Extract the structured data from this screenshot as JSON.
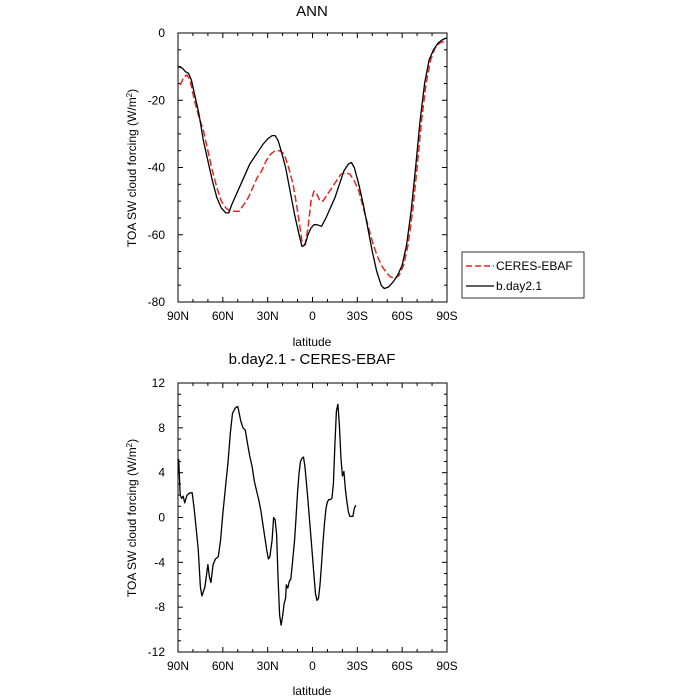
{
  "chart_data": [
    {
      "type": "line",
      "title": "ANN",
      "xlabel": "latitude",
      "ylabel": "TOA SW cloud forcing (W/m",
      "ylabel_sup": "2",
      "ylabel_end": ")",
      "xlim": [
        90,
        -90
      ],
      "ylim": [
        -80,
        0
      ],
      "xticks": [
        90,
        60,
        30,
        0,
        -30,
        -60,
        -90
      ],
      "xtick_labels": [
        "90N",
        "60N",
        "30N",
        "0",
        "30S",
        "60S",
        "90S"
      ],
      "yticks": [
        -80,
        -60,
        -40,
        -20,
        0
      ],
      "ytick_labels": [
        "-80",
        "-60",
        "-40",
        "-20",
        "0"
      ],
      "legend_position": "right",
      "series": [
        {
          "name": "CERES-EBAF",
          "color": "#e8251f",
          "dash": true,
          "points": [
            [
              88.5,
              -15.5
            ],
            [
              86,
              -13
            ],
            [
              84,
              -12.5
            ],
            [
              82,
              -14
            ],
            [
              79,
              -20
            ],
            [
              76,
              -25
            ],
            [
              73,
              -29
            ],
            [
              70,
              -35
            ],
            [
              67,
              -41
            ],
            [
              64,
              -46
            ],
            [
              61,
              -50
            ],
            [
              58,
              -52
            ],
            [
              55,
              -53
            ],
            [
              52,
              -53
            ],
            [
              49,
              -53
            ],
            [
              46,
              -51
            ],
            [
              43,
              -49
            ],
            [
              40,
              -46
            ],
            [
              37,
              -43
            ],
            [
              34,
              -41
            ],
            [
              31,
              -38
            ],
            [
              28,
              -36
            ],
            [
              25,
              -35
            ],
            [
              22,
              -35
            ],
            [
              19,
              -36
            ],
            [
              16,
              -40
            ],
            [
              13,
              -45
            ],
            [
              10,
              -53
            ],
            [
              7,
              -62
            ],
            [
              5,
              -63
            ],
            [
              3,
              -58
            ],
            [
              1,
              -50
            ],
            [
              -1,
              -47
            ],
            [
              -3,
              -48
            ],
            [
              -5,
              -50
            ],
            [
              -7,
              -50
            ],
            [
              -10,
              -48
            ],
            [
              -13,
              -46
            ],
            [
              -16,
              -44
            ],
            [
              -19,
              -42
            ],
            [
              -22,
              -41.5
            ],
            [
              -25,
              -42
            ],
            [
              -28,
              -44
            ],
            [
              -31,
              -47
            ],
            [
              -34,
              -52
            ],
            [
              -37,
              -57
            ],
            [
              -40,
              -62
            ],
            [
              -43,
              -66
            ],
            [
              -46,
              -69
            ],
            [
              -49,
              -71
            ],
            [
              -52,
              -72.5
            ],
            [
              -55,
              -73
            ],
            [
              -58,
              -72
            ],
            [
              -61,
              -69
            ],
            [
              -64,
              -63
            ],
            [
              -67,
              -53
            ],
            [
              -70,
              -40
            ],
            [
              -73,
              -26
            ],
            [
              -76,
              -15
            ],
            [
              -79,
              -8
            ],
            [
              -82,
              -4.5
            ],
            [
              -85,
              -3
            ],
            [
              -88,
              -2.5
            ]
          ]
        },
        {
          "name": "b.day2.1",
          "color": "#000000",
          "dash": false,
          "points": [
            [
              89.5,
              -10
            ],
            [
              87,
              -10.5
            ],
            [
              85,
              -11.5
            ],
            [
              83,
              -12
            ],
            [
              81,
              -14
            ],
            [
              79,
              -18
            ],
            [
              76,
              -24
            ],
            [
              73,
              -32
            ],
            [
              70,
              -38
            ],
            [
              67,
              -44
            ],
            [
              64,
              -49
            ],
            [
              61,
              -52
            ],
            [
              58,
              -53.5
            ],
            [
              56,
              -53.5
            ],
            [
              54,
              -51
            ],
            [
              51,
              -48
            ],
            [
              48,
              -45
            ],
            [
              45,
              -42
            ],
            [
              42,
              -39
            ],
            [
              39,
              -37
            ],
            [
              36,
              -35
            ],
            [
              33,
              -33
            ],
            [
              30,
              -31.5
            ],
            [
              27,
              -30.5
            ],
            [
              25,
              -30.5
            ],
            [
              23,
              -32
            ],
            [
              21,
              -35
            ],
            [
              18,
              -40
            ],
            [
              15,
              -47
            ],
            [
              12,
              -54
            ],
            [
              9,
              -60
            ],
            [
              7,
              -63.5
            ],
            [
              5,
              -63
            ],
            [
              3,
              -60
            ],
            [
              1,
              -58
            ],
            [
              -1,
              -57
            ],
            [
              -3,
              -57
            ],
            [
              -6,
              -57.5
            ],
            [
              -9,
              -55
            ],
            [
              -12,
              -52
            ],
            [
              -15,
              -49
            ],
            [
              -18,
              -45
            ],
            [
              -21,
              -41
            ],
            [
              -24,
              -39
            ],
            [
              -26,
              -38.5
            ],
            [
              -28,
              -40
            ],
            [
              -31,
              -45
            ],
            [
              -34,
              -51
            ],
            [
              -37,
              -58
            ],
            [
              -40,
              -65
            ],
            [
              -43,
              -71
            ],
            [
              -46,
              -75
            ],
            [
              -48,
              -76
            ],
            [
              -51,
              -75.5
            ],
            [
              -54,
              -74
            ],
            [
              -57,
              -72
            ],
            [
              -60,
              -69
            ],
            [
              -63,
              -63
            ],
            [
              -66,
              -53
            ],
            [
              -69,
              -40
            ],
            [
              -72,
              -26
            ],
            [
              -75,
              -15
            ],
            [
              -78,
              -8
            ],
            [
              -81,
              -5
            ],
            [
              -84,
              -3
            ],
            [
              -87,
              -2
            ],
            [
              -89.5,
              -1.5
            ]
          ]
        }
      ]
    },
    {
      "type": "line",
      "title": "b.day2.1 - CERES-EBAF",
      "xlabel": "latitude",
      "ylabel": "TOA SW cloud forcing (W/m",
      "ylabel_sup": "2",
      "ylabel_end": ")",
      "xlim": [
        90,
        -90
      ],
      "ylim": [
        -12,
        12
      ],
      "xticks": [
        90,
        60,
        30,
        0,
        -30,
        -60,
        -90
      ],
      "xtick_labels": [
        "90N",
        "60N",
        "30N",
        "0",
        "30S",
        "60S",
        "90S"
      ],
      "yticks": [
        -12,
        -8,
        -4,
        0,
        4,
        8,
        12
      ],
      "ytick_labels": [
        "-12",
        "-8",
        "-4",
        "0",
        "4",
        "8",
        "12"
      ],
      "series": [
        {
          "name": "b.day2.1 - CERES-EBAF",
          "color": "#000000",
          "dash": false,
          "points": [
            [
              89.5,
              5.2
            ],
            [
              88.5,
              2.0
            ],
            [
              87.5,
              1.7
            ],
            [
              86.5,
              1.9
            ],
            [
              85.5,
              1.3
            ],
            [
              84,
              2.0
            ],
            [
              82,
              2.2
            ],
            [
              80.5,
              2.2
            ],
            [
              79,
              0.6
            ],
            [
              76.5,
              -2.8
            ],
            [
              75,
              -6.2
            ],
            [
              74,
              -7.0
            ],
            [
              72,
              -6.2
            ],
            [
              70,
              -4.2
            ],
            [
              69,
              -5.3
            ],
            [
              68,
              -5.8
            ],
            [
              66.5,
              -4.2
            ],
            [
              65,
              -3.7
            ],
            [
              63,
              -3.5
            ],
            [
              61.5,
              -2.0
            ],
            [
              60,
              0.3
            ],
            [
              58,
              3.0
            ],
            [
              56.5,
              5.0
            ],
            [
              55,
              7.5
            ],
            [
              53.5,
              9.3
            ],
            [
              51.5,
              9.8
            ],
            [
              50,
              9.9
            ],
            [
              48,
              8.6
            ],
            [
              46.5,
              8.0
            ],
            [
              45,
              7.8
            ],
            [
              43.5,
              6.6
            ],
            [
              42,
              5.5
            ],
            [
              40.5,
              4.6
            ],
            [
              39,
              3.3
            ],
            [
              37.5,
              2.4
            ],
            [
              36,
              1.6
            ],
            [
              34.5,
              0.6
            ],
            [
              33,
              -0.8
            ],
            [
              31.5,
              -2.1
            ],
            [
              30.5,
              -3.0
            ],
            [
              29.5,
              -3.7
            ],
            [
              28.5,
              -3.5
            ],
            [
              27,
              -2.0
            ],
            [
              26,
              0.0
            ],
            [
              25,
              -0.2
            ],
            [
              24,
              -1.5
            ],
            [
              23,
              -5.5
            ],
            [
              22,
              -8.7
            ],
            [
              21,
              -9.6
            ],
            [
              20,
              -8.8
            ],
            [
              19,
              -7.7
            ],
            [
              18,
              -7.2
            ],
            [
              17.5,
              -6.0
            ],
            [
              16.5,
              -6.3
            ],
            [
              15.5,
              -5.7
            ],
            [
              14.5,
              -5.5
            ],
            [
              13.5,
              -4.2
            ],
            [
              12,
              -2.0
            ],
            [
              11,
              0.1
            ],
            [
              10,
              2.3
            ],
            [
              9,
              4.0
            ],
            [
              8,
              5.0
            ],
            [
              7,
              5.3
            ],
            [
              6,
              5.4
            ],
            [
              5,
              4.5
            ],
            [
              4,
              3.0
            ],
            [
              3,
              1.5
            ],
            [
              2,
              -0.2
            ],
            [
              1,
              -1.8
            ],
            [
              0,
              -3.5
            ],
            [
              -1,
              -5.2
            ],
            [
              -2,
              -6.8
            ],
            [
              -3,
              -7.4
            ],
            [
              -4,
              -7.2
            ],
            [
              -5,
              -6.0
            ],
            [
              -6,
              -4.2
            ],
            [
              -7,
              -2.2
            ],
            [
              -8,
              -0.5
            ],
            [
              -9,
              0.8
            ],
            [
              -10,
              1.4
            ],
            [
              -11,
              1.6
            ],
            [
              -12,
              1.6
            ],
            [
              -13,
              1.7
            ],
            [
              -14,
              3.0
            ],
            [
              -15,
              6.5
            ],
            [
              -16,
              9.5
            ],
            [
              -17,
              10.1
            ],
            [
              -18,
              8.2
            ],
            [
              -19,
              5.4
            ],
            [
              -20,
              3.7
            ],
            [
              -21,
              4.1
            ],
            [
              -22,
              2.5
            ],
            [
              -23,
              1.4
            ],
            [
              -24,
              0.5
            ],
            [
              -25,
              0.1
            ],
            [
              -26,
              0.1
            ],
            [
              -27,
              0.1
            ],
            [
              -28,
              0.8
            ],
            [
              -29,
              1.1
            ]
          ]
        }
      ]
    }
  ],
  "colors": {
    "ceres": "#e8251f",
    "model": "#000000"
  }
}
